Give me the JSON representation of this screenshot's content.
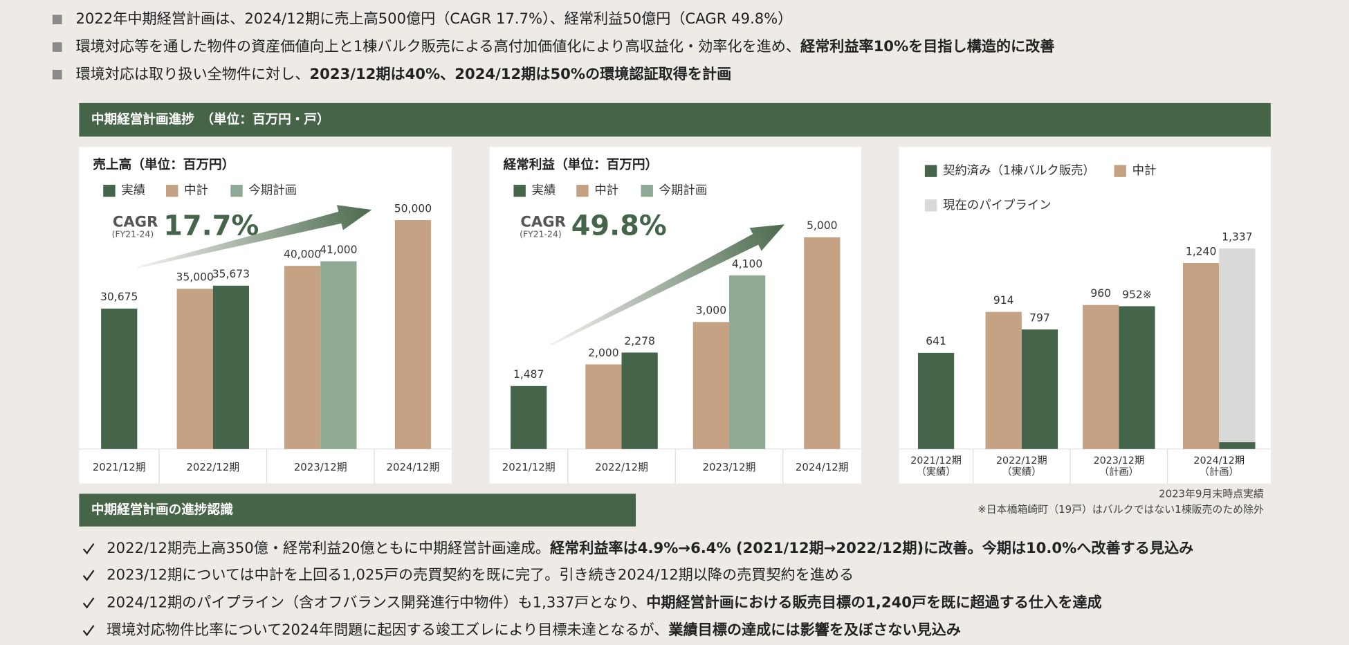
{
  "top_bullets": [
    {
      "text": "2022年中期経営計画は、2024/12期に売上高500億円（CAGR 17.7%）、経常利益50億円（CAGR 49.8%）"
    },
    {
      "text": "環境対応等を通した物件の資産価値向上と1棟バルク販売による高付加価値化により高収益化・効率化を進め、",
      "emphasis": "経常利益率10%を目指し構造的に改善"
    },
    {
      "text": "環境対応は取り扱い全物件に対し、",
      "emphasis": "2023/12期は40%、2024/12期は50%の環境認証取得を計画"
    }
  ],
  "progress_header": "中期経営計画進捗　（単位：百万円・戸）",
  "chart_data": [
    {
      "type": "bar",
      "title": "売上高（単位：百万円）",
      "categories": [
        "2021/12期",
        "2022/12期",
        "2023/12期",
        "2024/12期"
      ],
      "series": [
        {
          "name": "実績",
          "color": "#44654a",
          "values": [
            30675,
            35673,
            null,
            null
          ],
          "value_labels": [
            "30,675",
            "35,673",
            null,
            null
          ]
        },
        {
          "name": "中計",
          "color": "#c4a283",
          "values": [
            null,
            35000,
            40000,
            50000
          ],
          "value_labels": [
            null,
            "35,000",
            "40,000",
            "50,000"
          ]
        },
        {
          "name": "今期計画",
          "color": "#8fa994",
          "values": [
            null,
            null,
            41000,
            null
          ],
          "value_labels": [
            null,
            null,
            "41,000",
            null
          ]
        }
      ],
      "ylim": [
        0,
        55000
      ],
      "cagr": {
        "label": "CAGR",
        "period": "(FY21-24)",
        "value": "17.7%"
      }
    },
    {
      "type": "bar",
      "title": "経常利益（単位：百万円）",
      "categories": [
        "2021/12期",
        "2022/12期",
        "2023/12期",
        "2024/12期"
      ],
      "series": [
        {
          "name": "実績",
          "color": "#44654a",
          "values": [
            1487,
            2278,
            null,
            null
          ],
          "value_labels": [
            "1,487",
            "2,278",
            null,
            null
          ]
        },
        {
          "name": "中計",
          "color": "#c4a283",
          "values": [
            null,
            2000,
            3000,
            5000
          ],
          "value_labels": [
            null,
            "2,000",
            "3,000",
            "5,000"
          ]
        },
        {
          "name": "今期計画",
          "color": "#8fa994",
          "values": [
            null,
            null,
            4100,
            null
          ],
          "value_labels": [
            null,
            null,
            "4,100",
            null
          ]
        }
      ],
      "ylim": [
        0,
        5500
      ],
      "cagr": {
        "label": "CAGR",
        "period": "(FY21-24)",
        "value": "49.8%"
      }
    },
    {
      "type": "bar",
      "categories": [
        [
          "2021/12期",
          "（実績）"
        ],
        [
          "2022/12期",
          "（実績）"
        ],
        [
          "2023/12期",
          "（計画）"
        ],
        [
          "2024/12期",
          "（計画）"
        ]
      ],
      "series": [
        {
          "name": "契約済み（1棟バルク販売）",
          "color": "#44654a",
          "values": [
            641,
            797,
            952,
            45
          ],
          "value_labels": [
            "641",
            "797",
            "952※",
            null
          ]
        },
        {
          "name": "中計",
          "color": "#c4a283",
          "values": [
            null,
            914,
            960,
            1240
          ],
          "value_labels": [
            null,
            "914",
            "960",
            "1,240"
          ]
        },
        {
          "name": "現在のパイプライン",
          "color": "#d9d9d9",
          "values": [
            null,
            null,
            null,
            1337
          ],
          "value_labels": [
            null,
            null,
            null,
            "1,337"
          ]
        }
      ],
      "ylim": [
        0,
        1400
      ]
    }
  ],
  "notes": [
    "2023年9月末時点実績",
    "※日本橋箱崎町（19戸）はバルクではない1棟販売のため除外"
  ],
  "recognition_header": "中期経営計画の進捗認識",
  "bottom_bullets": [
    {
      "text": "2022/12期売上高350億・経常利益20億ともに中期経営計画達成。",
      "emphasis": "経常利益率は4.9%→6.4% (2021/12期→2022/12期)に改善。今期は10.0%へ改善する見込み"
    },
    {
      "text": "2023/12期については中計を上回る1,025戸の売買契約を既に完了。引き続き2024/12期以降の売買契約を進める"
    },
    {
      "text": "2024/12期のパイプライン（含オフバランス開発進行中物件）も1,337戸となり、",
      "emphasis": "中期経営計画における販売目標の1,240戸を既に超過する仕入を達成"
    },
    {
      "text": "環境対応物件比率について2024年問題に起因する竣工ズレにより目標未達となるが、",
      "emphasis": "業績目標の達成には影響を及ぼさない見込み"
    }
  ]
}
